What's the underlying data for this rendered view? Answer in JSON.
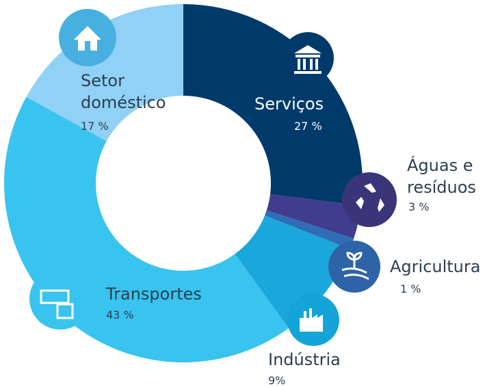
{
  "chart_data": {
    "type": "donut",
    "categories": [
      "Serviços",
      "Águas e resíduos",
      "Agricultura",
      "Indústria",
      "Transportes",
      "Setor doméstico"
    ],
    "values": [
      27,
      3,
      1,
      9,
      43,
      17
    ],
    "value_labels": [
      "27 %",
      "3 %",
      "1 %",
      "9%",
      "43 %",
      "17 %"
    ],
    "colors": [
      "#003a6b",
      "#413d8e",
      "#2f6db5",
      "#1aa8dc",
      "#38c4ee",
      "#90d1f5"
    ]
  }
}
